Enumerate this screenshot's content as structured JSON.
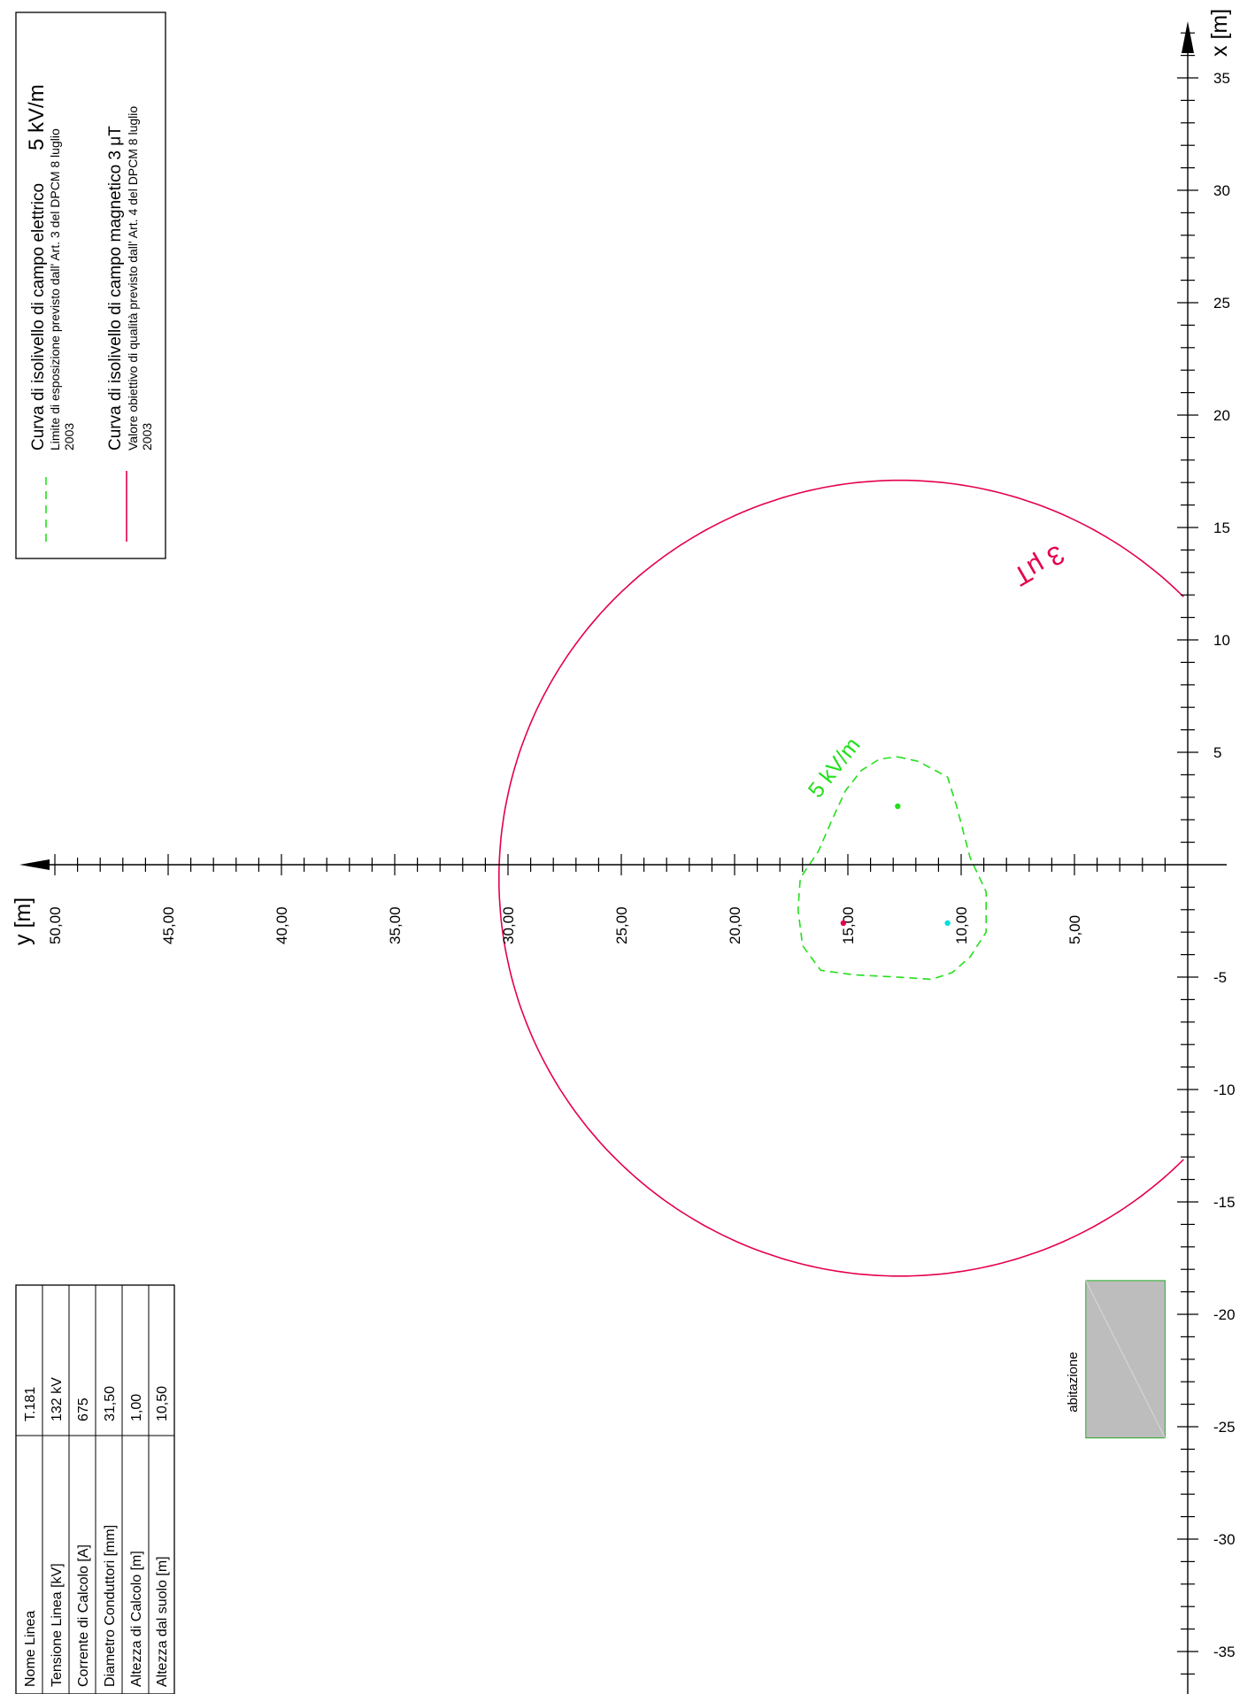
{
  "axes": {
    "x_title": "x [m]",
    "y_title": "y [m]",
    "x_ticks": [
      {
        "value": 35,
        "label": "35"
      },
      {
        "value": 30,
        "label": "30"
      },
      {
        "value": 25,
        "label": "25"
      },
      {
        "value": 20,
        "label": "20"
      },
      {
        "value": 15,
        "label": "15"
      },
      {
        "value": 10,
        "label": "10"
      },
      {
        "value": 5,
        "label": "5"
      },
      {
        "value": -5,
        "label": "-5"
      },
      {
        "value": -10,
        "label": "-10"
      },
      {
        "value": -15,
        "label": "-15"
      },
      {
        "value": -20,
        "label": "-20"
      },
      {
        "value": -25,
        "label": "-25"
      },
      {
        "value": -30,
        "label": "-30"
      },
      {
        "value": -35,
        "label": "-35"
      }
    ],
    "y_ticks": [
      {
        "value": 50,
        "label": "50,00"
      },
      {
        "value": 45,
        "label": "45,00"
      },
      {
        "value": 40,
        "label": "40,00"
      },
      {
        "value": 35,
        "label": "35,00"
      },
      {
        "value": 30,
        "label": "30,00"
      },
      {
        "value": 25,
        "label": "25,00"
      },
      {
        "value": 20,
        "label": "20,00"
      },
      {
        "value": 15,
        "label": "15,00"
      },
      {
        "value": 10,
        "label": "10,00"
      },
      {
        "value": 5,
        "label": "5,00"
      }
    ],
    "x_range": [
      -38.5,
      38
    ],
    "y_range": [
      0,
      51.5
    ]
  },
  "curves": {
    "magnetic": {
      "label": "3 μT",
      "color": "#e5004c",
      "center": {
        "y": 12.7,
        "x": -0.6
      },
      "radius": 17.7
    },
    "electric": {
      "label": "5 kV/m",
      "color": "#22e01a",
      "points": [
        {
          "y": 12.8,
          "x": 4.8
        },
        {
          "y": 11.9,
          "x": 4.6
        },
        {
          "y": 10.6,
          "x": 3.9
        },
        {
          "y": 10.2,
          "x": 2.6
        },
        {
          "y": 9.6,
          "x": 0.3
        },
        {
          "y": 8.9,
          "x": -1.2
        },
        {
          "y": 8.9,
          "x": -3.0
        },
        {
          "y": 9.6,
          "x": -4.1
        },
        {
          "y": 10.4,
          "x": -4.8
        },
        {
          "y": 11.3,
          "x": -5.1
        },
        {
          "y": 12.8,
          "x": -5.0
        },
        {
          "y": 14.7,
          "x": -4.9
        },
        {
          "y": 16.2,
          "x": -4.7
        },
        {
          "y": 17.0,
          "x": -3.6
        },
        {
          "y": 17.2,
          "x": -2.0
        },
        {
          "y": 17.1,
          "x": -0.6
        },
        {
          "y": 16.3,
          "x": 0.6
        },
        {
          "y": 15.7,
          "x": 2.0
        },
        {
          "y": 15.1,
          "x": 3.3
        },
        {
          "y": 14.4,
          "x": 4.2
        },
        {
          "y": 13.6,
          "x": 4.7
        },
        {
          "y": 12.8,
          "x": 4.8
        }
      ]
    }
  },
  "conductors": [
    {
      "y": 12.8,
      "x": 2.6,
      "color": "#22e01a"
    },
    {
      "y": 15.2,
      "x": -2.6,
      "color": "#e5004c"
    },
    {
      "y": 10.6,
      "x": -2.6,
      "color": "#00e0e0"
    }
  ],
  "building": {
    "label": "abitazione",
    "fill": "#bdbdbd",
    "border": "#22aa22",
    "x_range": [
      -25.5,
      -18.5
    ],
    "y_range": [
      1.0,
      4.5
    ]
  },
  "legend": {
    "items": [
      {
        "title": "Curva di isolivello di campo elettrico",
        "value": "5 kV/m",
        "note": "Limite di esposizione previsto dall' Art. 3 del DPCM 8 luglio",
        "year": "2003",
        "line_style": "dashed",
        "color": "#22e01a"
      },
      {
        "title": "Curva di isolivello di campo magnetico 3 μT",
        "value": "",
        "note": "Valore obiettivo di qualità previsto dall' Art. 4 del DPCM 8 luglio",
        "year": "2003",
        "line_style": "solid",
        "color": "#e5004c"
      }
    ]
  },
  "table": {
    "rows": [
      {
        "label": "Nome Linea",
        "value": "T.181"
      },
      {
        "label": "Tensione Linea [kV]",
        "value": "132 kV"
      },
      {
        "label": "Corrente di Calcolo [A]",
        "value": "675"
      },
      {
        "label": "Diametro Conduttori [mm]",
        "value": "31,50"
      },
      {
        "label": "Altezza di Calcolo [m]",
        "value": "1,00"
      },
      {
        "label": "Altezza dal suolo [m]",
        "value": "10,50"
      }
    ]
  }
}
